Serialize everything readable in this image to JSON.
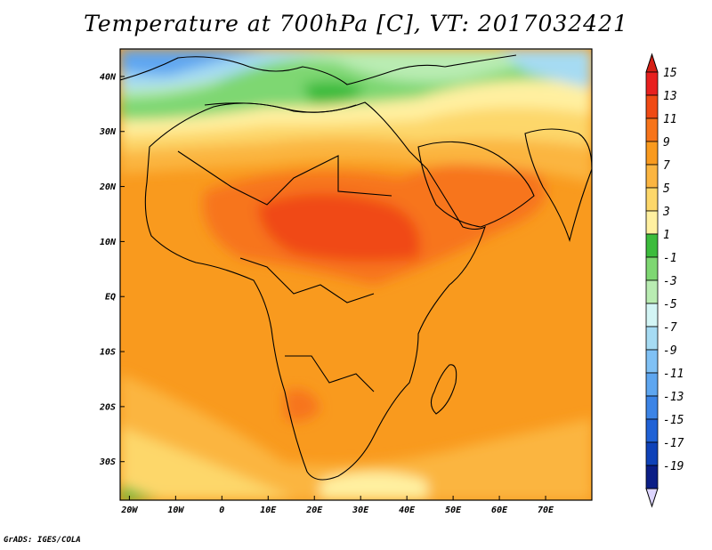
{
  "title": "Temperature at 700hPa [C], VT: 2017032421",
  "credit": "GrADS: IGES/COLA",
  "map": {
    "region": "Africa",
    "variable": "Temperature at 700hPa",
    "units": "C",
    "valid_time": "2017032421",
    "lon_range": [
      -22,
      80
    ],
    "lat_range": [
      -37,
      45
    ],
    "lon_ticks": [
      {
        "value": -20,
        "label": "20W"
      },
      {
        "value": -10,
        "label": "10W"
      },
      {
        "value": 0,
        "label": "0"
      },
      {
        "value": 10,
        "label": "10E"
      },
      {
        "value": 20,
        "label": "20E"
      },
      {
        "value": 30,
        "label": "30E"
      },
      {
        "value": 40,
        "label": "40E"
      },
      {
        "value": 50,
        "label": "50E"
      },
      {
        "value": 60,
        "label": "60E"
      },
      {
        "value": 70,
        "label": "70E"
      }
    ],
    "lat_ticks": [
      {
        "value": 40,
        "label": "40N"
      },
      {
        "value": 30,
        "label": "30N"
      },
      {
        "value": 20,
        "label": "20N"
      },
      {
        "value": 10,
        "label": "10N"
      },
      {
        "value": 0,
        "label": "EQ"
      },
      {
        "value": -10,
        "label": "10S"
      },
      {
        "value": -20,
        "label": "20S"
      },
      {
        "value": -30,
        "label": "30S"
      }
    ]
  },
  "colorbar": {
    "levels": [
      {
        "label": "15",
        "color": "#e8201e"
      },
      {
        "label": "13",
        "color": "#f04a14"
      },
      {
        "label": "11",
        "color": "#f7741a"
      },
      {
        "label": "9",
        "color": "#f99a1e"
      },
      {
        "label": "7",
        "color": "#fbb541"
      },
      {
        "label": "5",
        "color": "#fdd76a"
      },
      {
        "label": "3",
        "color": "#fff0a0"
      },
      {
        "label": "1",
        "color": "#3cbc3c"
      },
      {
        "label": "-1",
        "color": "#7ed772"
      },
      {
        "label": "-3",
        "color": "#b9ecb2"
      },
      {
        "label": "-5",
        "color": "#d3f5f5"
      },
      {
        "label": "-7",
        "color": "#a6dbf3"
      },
      {
        "label": "-9",
        "color": "#80c1f5"
      },
      {
        "label": "-11",
        "color": "#5ea6f0"
      },
      {
        "label": "-13",
        "color": "#3c84e6"
      },
      {
        "label": "-15",
        "color": "#2062d6"
      },
      {
        "label": "-17",
        "color": "#0f42b8"
      },
      {
        "label": "-19",
        "color": "#0b1e86"
      }
    ],
    "above_max_color": "#d51f15",
    "below_min_color": "#ddd5ff"
  }
}
